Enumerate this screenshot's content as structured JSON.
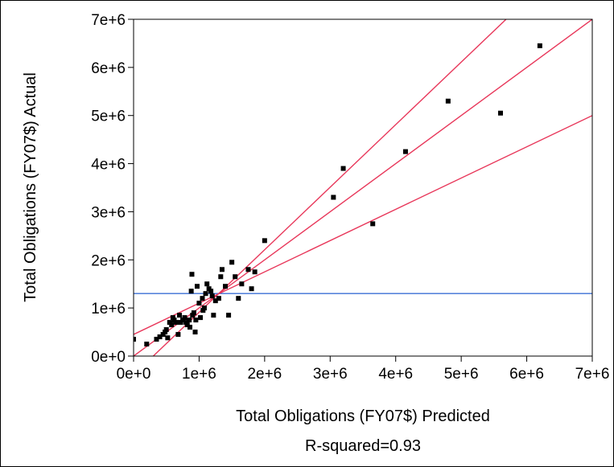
{
  "chart_data": {
    "type": "scatter",
    "xlabel": "Total Obligations (FY07$) Predicted",
    "ylabel": "Total Obligations (FY07$) Actual",
    "subtitle": "R-squared=0.93",
    "xlim": [
      0,
      7000000
    ],
    "ylim": [
      0,
      7000000
    ],
    "x_ticks": [
      0,
      1000000,
      2000000,
      3000000,
      4000000,
      5000000,
      6000000,
      7000000
    ],
    "y_ticks": [
      0,
      1000000,
      2000000,
      3000000,
      4000000,
      5000000,
      6000000,
      7000000
    ],
    "x_tick_labels": [
      "0e+0",
      "1e+6",
      "2e+6",
      "3e+6",
      "4e+6",
      "5e+6",
      "6e+6",
      "7e+6"
    ],
    "y_tick_labels": [
      "0e+0",
      "1e+6",
      "2e+6",
      "3e+6",
      "4e+6",
      "5e+6",
      "6e+6",
      "7e+6"
    ],
    "grid": false,
    "colors": {
      "points": "#000000",
      "fit_lines": "#e8375a",
      "mean_line": "#3b6fd6",
      "axes": "#000000"
    },
    "points": [
      [
        0,
        350000
      ],
      [
        200000,
        250000
      ],
      [
        350000,
        350000
      ],
      [
        400000,
        400000
      ],
      [
        450000,
        450000
      ],
      [
        480000,
        500000
      ],
      [
        500000,
        550000
      ],
      [
        520000,
        380000
      ],
      [
        550000,
        700000
      ],
      [
        580000,
        650000
      ],
      [
        600000,
        800000
      ],
      [
        620000,
        750000
      ],
      [
        650000,
        700000
      ],
      [
        680000,
        450000
      ],
      [
        700000,
        850000
      ],
      [
        720000,
        700000
      ],
      [
        750000,
        750000
      ],
      [
        780000,
        800000
      ],
      [
        800000,
        700000
      ],
      [
        820000,
        650000
      ],
      [
        850000,
        750000
      ],
      [
        860000,
        600000
      ],
      [
        880000,
        1350000
      ],
      [
        890000,
        1700000
      ],
      [
        900000,
        850000
      ],
      [
        920000,
        900000
      ],
      [
        940000,
        500000
      ],
      [
        950000,
        750000
      ],
      [
        970000,
        1450000
      ],
      [
        1000000,
        1100000
      ],
      [
        1020000,
        800000
      ],
      [
        1050000,
        1200000
      ],
      [
        1060000,
        950000
      ],
      [
        1080000,
        1000000
      ],
      [
        1100000,
        1300000
      ],
      [
        1120000,
        1500000
      ],
      [
        1150000,
        1400000
      ],
      [
        1180000,
        1350000
      ],
      [
        1200000,
        1250000
      ],
      [
        1220000,
        850000
      ],
      [
        1250000,
        1150000
      ],
      [
        1300000,
        1200000
      ],
      [
        1330000,
        1650000
      ],
      [
        1350000,
        1800000
      ],
      [
        1400000,
        1450000
      ],
      [
        1450000,
        850000
      ],
      [
        1500000,
        1950000
      ],
      [
        1550000,
        1650000
      ],
      [
        1600000,
        1200000
      ],
      [
        1650000,
        1500000
      ],
      [
        1750000,
        1800000
      ],
      [
        1800000,
        1400000
      ],
      [
        1850000,
        1750000
      ],
      [
        2000000,
        2400000
      ],
      [
        3050000,
        3300000
      ],
      [
        3200000,
        3900000
      ],
      [
        3650000,
        2750000
      ],
      [
        4150000,
        4250000
      ],
      [
        4800000,
        5300000
      ],
      [
        5600000,
        5050000
      ],
      [
        6200000,
        6450000
      ]
    ],
    "fit_line": {
      "slope": 1.0,
      "intercept": 0
    },
    "upper_confidence_line": {
      "slope": 1.3,
      "intercept": -390000
    },
    "lower_confidence_line": {
      "slope": 0.65,
      "intercept": 450000
    },
    "mean_line": {
      "y": 1300000
    }
  }
}
